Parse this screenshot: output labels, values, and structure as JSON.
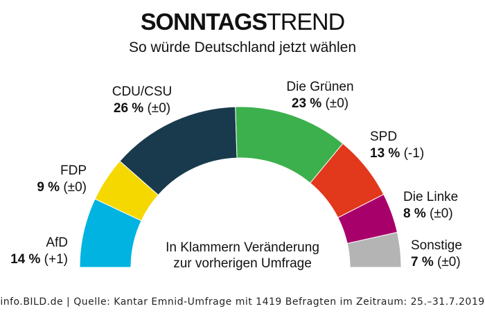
{
  "header": {
    "title_bold": "SONNTAGS",
    "title_light": "TREND",
    "subtitle": "So würde Deutschland jetzt wählen"
  },
  "center_note": {
    "line1": "In Klammern Veränderung",
    "line2": "zur vorherigen Umfrage"
  },
  "footer": "info.BILD.de | Quelle: Kantar Emnid-Umfrage mit 1419 Befragten im Zeitraum: 25.–31.7.2019",
  "chart_data": {
    "type": "pie",
    "shape": "semicircle",
    "title": "SONNTAGSTREND",
    "subtitle": "So würde Deutschland jetzt wählen",
    "unit": "%",
    "series": [
      {
        "name": "AfD",
        "value": 14,
        "change": "(+1)",
        "color": "#00b3e0"
      },
      {
        "name": "FDP",
        "value": 9,
        "change": "(±0)",
        "color": "#f5d800"
      },
      {
        "name": "CDU/CSU",
        "value": 26,
        "change": "(±0)",
        "color": "#183a4c"
      },
      {
        "name": "Die Grünen",
        "value": 23,
        "change": "(±0)",
        "color": "#3cb04d"
      },
      {
        "name": "SPD",
        "value": 13,
        "change": "(-1)",
        "color": "#e2381c"
      },
      {
        "name": "Die Linke",
        "value": 8,
        "change": "(±0)",
        "color": "#a8006a"
      },
      {
        "name": "Sonstige",
        "value": 7,
        "change": "(±0)",
        "color": "#b4b4b4"
      }
    ]
  }
}
